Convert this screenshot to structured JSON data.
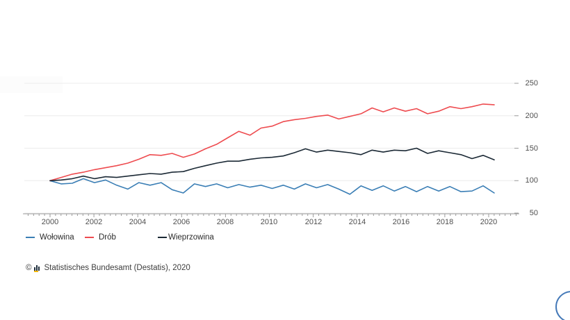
{
  "chart_data": {
    "type": "line",
    "title": "",
    "x_interval": "semiannual",
    "x_range": [
      2000,
      2020
    ],
    "ylim": [
      50,
      250
    ],
    "grid": true,
    "legend_position": "bottom-left",
    "y_ticks": [
      250,
      200,
      150,
      100,
      50
    ],
    "y_tick_labels": [
      "250",
      "200",
      "150",
      "100",
      "50"
    ],
    "x_tick_labels": [
      "2000",
      "2002",
      "2004",
      "2006",
      "2008",
      "2010",
      "2012",
      "2014",
      "2016",
      "2018",
      "2020"
    ],
    "series": [
      {
        "id": "wolowina",
        "name": "Wołowina",
        "color": "#3a7eb5",
        "values": [
          100,
          95,
          96,
          103,
          97,
          101,
          93,
          87,
          97,
          93,
          97,
          86,
          81,
          95,
          91,
          95,
          89,
          94,
          90,
          93,
          88,
          93,
          87,
          95,
          89,
          94,
          87,
          79,
          92,
          85,
          92,
          84,
          91,
          83,
          91,
          84,
          91,
          83,
          84,
          92,
          81
        ]
      },
      {
        "id": "drob",
        "name": "Drób",
        "color": "#ee4b4f",
        "values": [
          100,
          105,
          110,
          113,
          117,
          120,
          123,
          127,
          133,
          140,
          139,
          142,
          136,
          141,
          149,
          156,
          166,
          176,
          170,
          181,
          184,
          191,
          194,
          196,
          199,
          201,
          195,
          199,
          203,
          212,
          206,
          212,
          207,
          211,
          203,
          207,
          214,
          211,
          214,
          218,
          217
        ]
      },
      {
        "id": "wieprzowina",
        "name": "Wieprzowina",
        "color": "#1b2935",
        "values": [
          100,
          101,
          103,
          107,
          103,
          106,
          105,
          107,
          109,
          111,
          110,
          113,
          114,
          119,
          123,
          127,
          130,
          130,
          133,
          135,
          136,
          138,
          143,
          149,
          144,
          147,
          145,
          143,
          140,
          147,
          144,
          147,
          146,
          150,
          142,
          146,
          143,
          140,
          134,
          139,
          132
        ]
      }
    ]
  },
  "colors": {
    "grid": "#ececec",
    "axis": "#9b9b9b",
    "background": "#ffffff",
    "fab_border": "#4479b8"
  },
  "footer": {
    "copyright": "©",
    "source": "Statistisches Bundesamt (Destatis), 2020"
  }
}
